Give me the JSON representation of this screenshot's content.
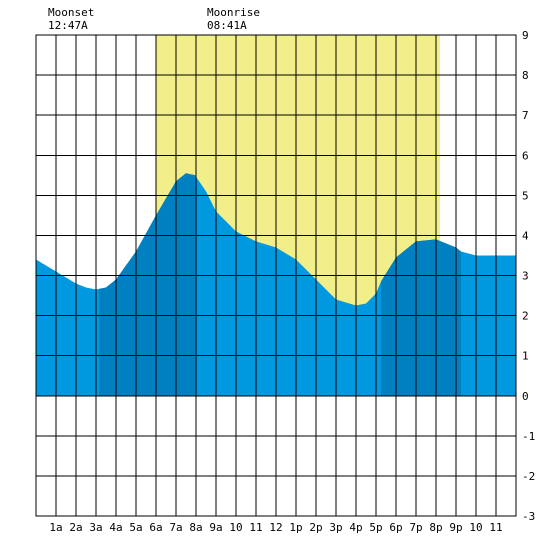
{
  "header": {
    "moonset_label": "Moonset",
    "moonset_time": "12:47A",
    "moonrise_label": "Moonrise",
    "moonrise_time": "08:41A"
  },
  "chart_data": {
    "type": "area",
    "title": "",
    "xlabel": "",
    "ylabel": "",
    "xlim": [
      0,
      24
    ],
    "ylim": [
      -3,
      9
    ],
    "grid": true,
    "x_tick_labels": [
      "1a",
      "2a",
      "3a",
      "4a",
      "5a",
      "6a",
      "7a",
      "8a",
      "9a",
      "10",
      "11",
      "12",
      "1p",
      "2p",
      "3p",
      "4p",
      "5p",
      "6p",
      "7p",
      "8p",
      "9p",
      "10",
      "11"
    ],
    "y_tick_labels": [
      "-3",
      "-2",
      "-1",
      "0",
      "1",
      "2",
      "3",
      "4",
      "5",
      "6",
      "7",
      "8",
      "9"
    ],
    "moon_up": {
      "start_hour": 6.0,
      "end_hour": 20.2,
      "color": "#f2ef8a"
    },
    "tide_colors": {
      "light": "#0099e0",
      "dark": "#0080c0"
    },
    "dark_bands": [
      [
        3.15,
        7.95
      ],
      [
        17.25,
        21.25
      ]
    ],
    "series": [
      {
        "x": [
          0,
          1,
          2,
          2.5,
          3,
          3.5,
          4,
          5,
          6,
          7,
          7.5,
          7.95,
          8.5,
          9,
          10,
          11,
          12,
          13,
          14,
          15,
          16,
          16.5,
          17,
          17.25,
          18,
          19,
          20,
          21,
          21.25,
          22,
          23,
          24
        ],
        "y": [
          3.4,
          3.1,
          2.8,
          2.7,
          2.65,
          2.7,
          2.9,
          3.6,
          4.5,
          5.35,
          5.55,
          5.5,
          5.1,
          4.6,
          4.1,
          3.85,
          3.7,
          3.4,
          2.9,
          2.4,
          2.25,
          2.3,
          2.55,
          2.85,
          3.45,
          3.85,
          3.9,
          3.7,
          3.6,
          3.5,
          3.5,
          3.5
        ]
      }
    ]
  }
}
